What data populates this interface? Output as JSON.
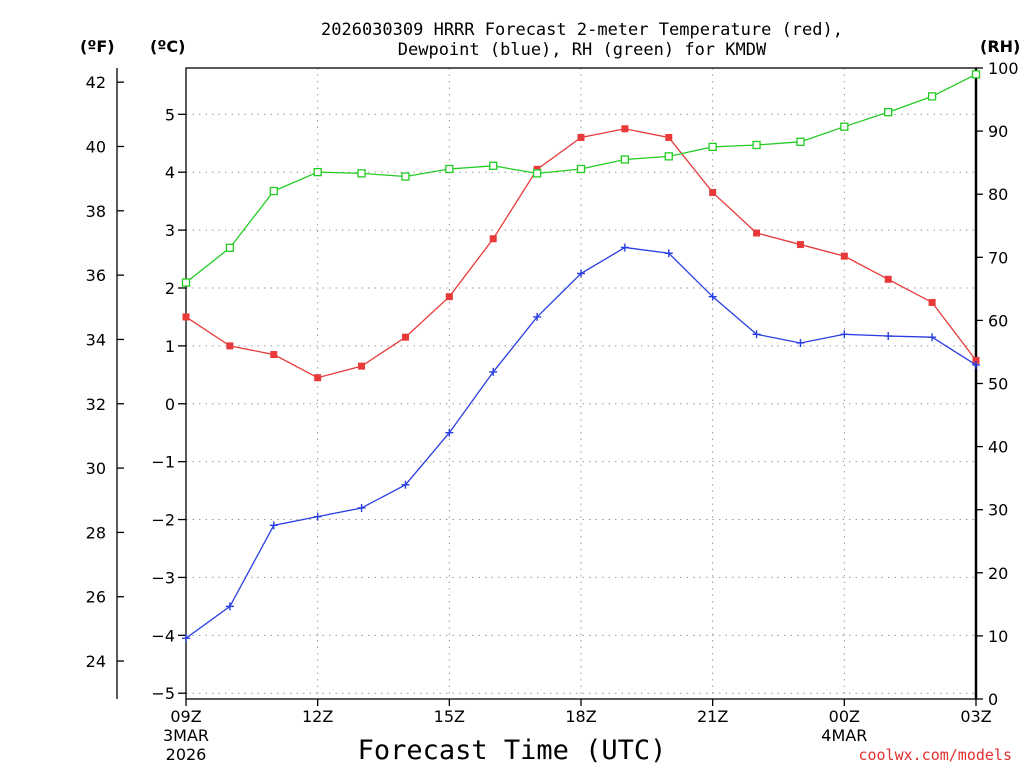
{
  "chart_data": {
    "type": "line",
    "title_line1": "2026030309 HRRR Forecast 2-meter Temperature (red),",
    "title_line2": "Dewpoint (blue), RH (green) for KMDW",
    "units": {
      "fahrenheit": "(ºF)",
      "celsius": "(ºC)",
      "rh": "(RH)"
    },
    "xlabel": "Forecast Time (UTC)",
    "credit": "coolwx.com/models",
    "x_hours": [
      0,
      1,
      2,
      3,
      4,
      5,
      6,
      7,
      8,
      9,
      10,
      11,
      12,
      13,
      14,
      15,
      16,
      17,
      18
    ],
    "x_ticks": [
      {
        "hour": 0,
        "label": "09Z",
        "sub1": "3MAR",
        "sub2": "2026"
      },
      {
        "hour": 3,
        "label": "12Z",
        "sub1": "",
        "sub2": ""
      },
      {
        "hour": 6,
        "label": "15Z",
        "sub1": "",
        "sub2": ""
      },
      {
        "hour": 9,
        "label": "18Z",
        "sub1": "",
        "sub2": ""
      },
      {
        "hour": 12,
        "label": "21Z",
        "sub1": "",
        "sub2": ""
      },
      {
        "hour": 15,
        "label": "00Z",
        "sub1": "4MAR",
        "sub2": ""
      },
      {
        "hour": 18,
        "label": "03Z",
        "sub1": "",
        "sub2": ""
      }
    ],
    "ylim_c": [
      -5.1,
      5.8
    ],
    "yticks_c": [
      "−5",
      "−4",
      "−3",
      "−2",
      "−1",
      "0",
      "1",
      "2",
      "3",
      "4",
      "5"
    ],
    "yticks_c_values": [
      -5,
      -4,
      -3,
      -2,
      -1,
      0,
      1,
      2,
      3,
      4,
      5
    ],
    "yticks_f": [
      "24",
      "26",
      "28",
      "30",
      "32",
      "34",
      "36",
      "38",
      "40",
      "42"
    ],
    "yticks_f_values": [
      24,
      26,
      28,
      30,
      32,
      34,
      36,
      38,
      40,
      42
    ],
    "ylim_rh": [
      0,
      100
    ],
    "yticks_rh": [
      "0",
      "10",
      "20",
      "30",
      "40",
      "50",
      "60",
      "70",
      "80",
      "90",
      "100"
    ],
    "yticks_rh_values": [
      0,
      10,
      20,
      30,
      40,
      50,
      60,
      70,
      80,
      90,
      100
    ],
    "series": [
      {
        "name": "Temperature",
        "color": "#e83a3a",
        "marker": "filled-square",
        "axis": "c",
        "values": [
          1.5,
          1.0,
          0.85,
          0.45,
          0.65,
          1.15,
          1.85,
          2.85,
          4.05,
          4.6,
          4.75,
          4.6,
          3.65,
          2.95,
          2.75,
          2.55,
          2.15,
          1.75,
          0.75
        ]
      },
      {
        "name": "Dewpoint",
        "color": "#2a3fe0",
        "marker": "plus",
        "axis": "c",
        "values": [
          -4.05,
          -3.5,
          -2.1,
          -1.95,
          -1.8,
          -1.4,
          -0.5,
          0.55,
          1.5,
          2.25,
          2.7,
          2.6,
          1.85,
          1.2,
          1.05,
          1.2,
          1.17,
          1.15,
          0.67
        ]
      },
      {
        "name": "RH",
        "color": "#22cc22",
        "marker": "open-square",
        "axis": "rh",
        "values": [
          66,
          71.5,
          80.5,
          83.5,
          83.3,
          82.8,
          84,
          84.5,
          83.3,
          84,
          85.5,
          86,
          87.5,
          87.8,
          88.3,
          90.7,
          93,
          95.5,
          99
        ]
      }
    ]
  }
}
